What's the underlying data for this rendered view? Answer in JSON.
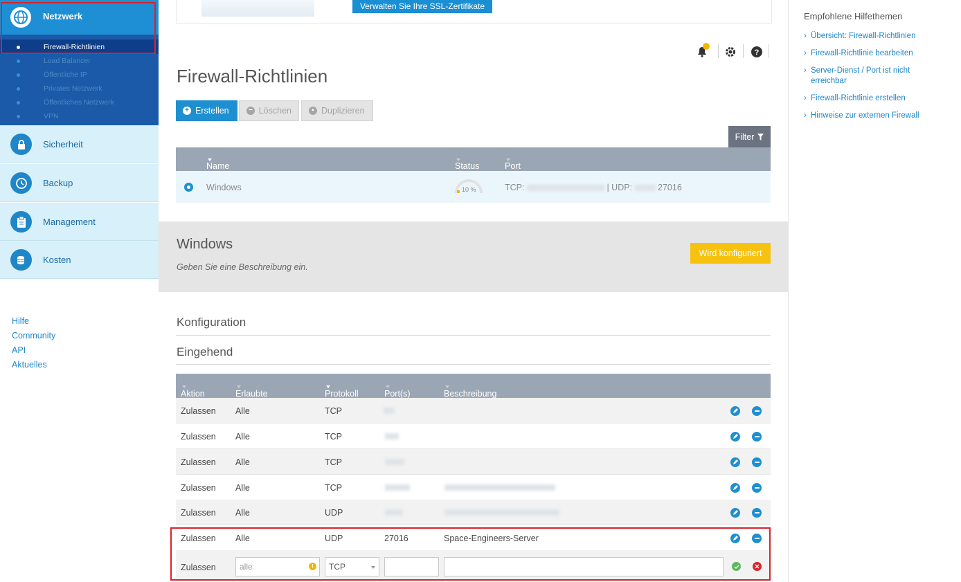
{
  "sidebar": {
    "network": {
      "label": "Netzwerk",
      "items": [
        {
          "label": "Firewall-Richtlinien"
        },
        {
          "label": "Load Balancer"
        },
        {
          "label": "Öffentliche IP"
        },
        {
          "label": "Privates Netzwerk"
        },
        {
          "label": "Öffentliches Netzwerk"
        },
        {
          "label": "VPN"
        }
      ]
    },
    "sections": [
      {
        "label": "Sicherheit",
        "icon": "lock-icon"
      },
      {
        "label": "Backup",
        "icon": "clock-icon"
      },
      {
        "label": "Management",
        "icon": "clipboard-icon"
      },
      {
        "label": "Kosten",
        "icon": "coins-icon"
      }
    ],
    "links": [
      "Hilfe",
      "Community",
      "API",
      "Aktuelles"
    ]
  },
  "banner": {
    "ssl_button": "Verwalten Sie Ihre SSL-Zertifikate"
  },
  "main": {
    "title": "Firewall-Richtlinien",
    "buttons": {
      "create": "Erstellen",
      "delete": "Löschen",
      "duplicate": "Duplizieren"
    },
    "filter": "Filter",
    "list_columns": [
      "Name",
      "Status",
      "Port"
    ],
    "policy": {
      "name": "Windows",
      "status_percent": "10 %",
      "port_tcp_label": "TCP:",
      "port_udp_label": "| UDP:",
      "port_udp_value": "27016"
    }
  },
  "detail": {
    "title": "Windows",
    "description": "Geben Sie eine Beschreibung ein.",
    "status_button": "Wird konfiguriert",
    "configuration": "Konfiguration",
    "incoming": "Eingehend"
  },
  "rules": {
    "columns": [
      "Aktion",
      "Erlaubte IP",
      "Protokoll",
      "Port(s)",
      "Beschreibung"
    ],
    "rows": [
      {
        "action": "Zulassen",
        "ip": "Alle",
        "protocol": "TCP",
        "port": "",
        "description": ""
      },
      {
        "action": "Zulassen",
        "ip": "Alle",
        "protocol": "TCP",
        "port": "",
        "description": ""
      },
      {
        "action": "Zulassen",
        "ip": "Alle",
        "protocol": "TCP",
        "port": "",
        "description": ""
      },
      {
        "action": "Zulassen",
        "ip": "Alle",
        "protocol": "TCP",
        "port": "",
        "description": ""
      },
      {
        "action": "Zulassen",
        "ip": "Alle",
        "protocol": "UDP",
        "port": "",
        "description": ""
      },
      {
        "action": "Zulassen",
        "ip": "Alle",
        "protocol": "UDP",
        "port": "27016",
        "description": "Space-Engineers-Server"
      }
    ],
    "new_row": {
      "action": "Zulassen",
      "ip_value": "alle",
      "protocol": "TCP",
      "port": "",
      "description": ""
    }
  },
  "help": {
    "title": "Empfohlene Hilfethemen",
    "topics": [
      "Übersicht: Firewall-Richtlinien",
      "Firewall-Richtlinie bearbeiten",
      "Server-Dienst / Port ist nicht erreichbar",
      "Firewall-Richtlinie erstellen",
      "Hinweise zur externen Firewall"
    ]
  },
  "colors": {
    "accent": "#1e8fd0",
    "highlight": "#d9232b",
    "warning": "#f7c20f"
  }
}
